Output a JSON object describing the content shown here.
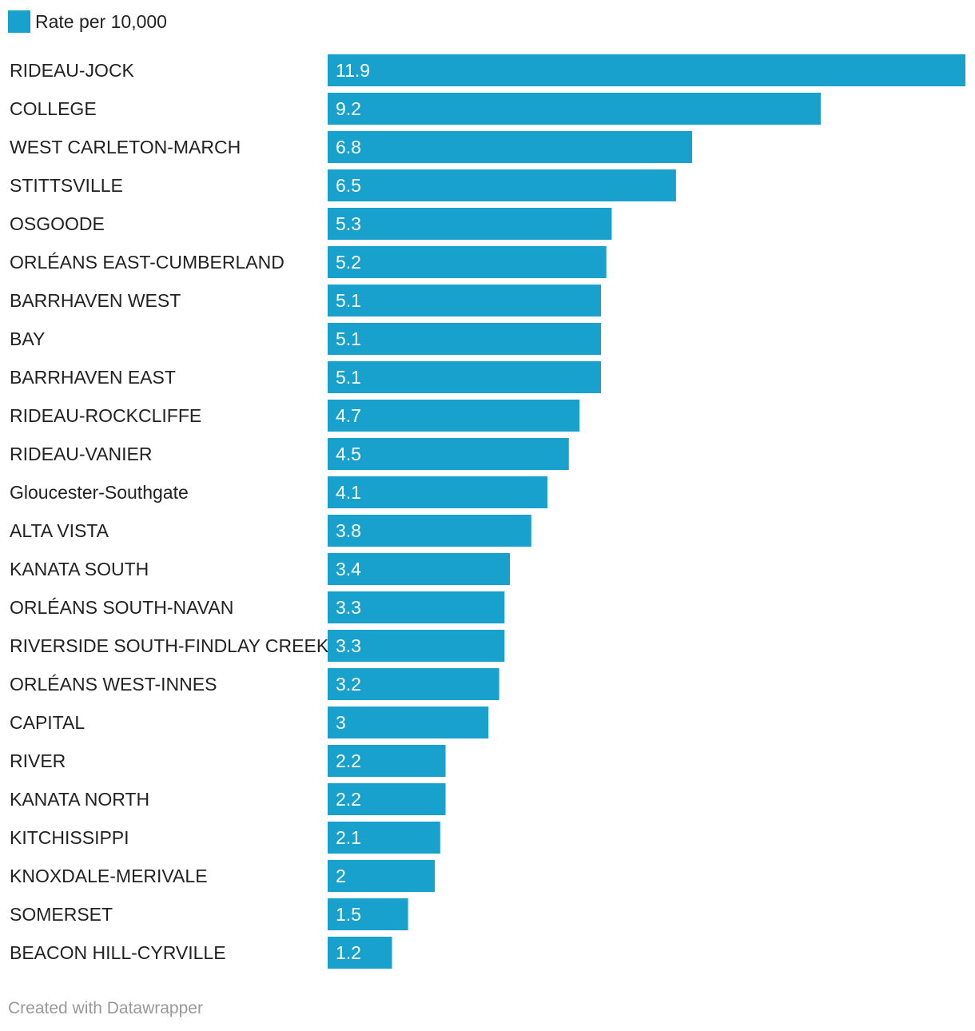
{
  "chart_data": {
    "type": "bar",
    "orientation": "horizontal",
    "legend": "top-left",
    "grid": false,
    "series": [
      {
        "name": "Rate per 10,000",
        "color": "#18a1cd"
      }
    ],
    "categories": [
      "RIDEAU-JOCK",
      "COLLEGE",
      "WEST CARLETON-MARCH",
      "STITTSVILLE",
      "OSGOODE",
      "ORLÉANS EAST-CUMBERLAND",
      "BARRHAVEN WEST",
      "BAY",
      "BARRHAVEN EAST",
      "RIDEAU-ROCKCLIFFE",
      "RIDEAU-VANIER",
      "Gloucester-Southgate",
      "ALTA VISTA",
      "KANATA SOUTH",
      "ORLÉANS SOUTH-NAVAN",
      "RIVERSIDE SOUTH-FINDLAY CREEK",
      "ORLÉANS WEST-INNES",
      "CAPITAL",
      "RIVER",
      "KANATA NORTH",
      "KITCHISSIPPI",
      "KNOXDALE-MERIVALE",
      "SOMERSET",
      "BEACON HILL-CYRVILLE"
    ],
    "values": [
      11.9,
      9.2,
      6.8,
      6.5,
      5.3,
      5.2,
      5.1,
      5.1,
      5.1,
      4.7,
      4.5,
      4.1,
      3.8,
      3.4,
      3.3,
      3.3,
      3.2,
      3,
      2.2,
      2.2,
      2.1,
      2,
      1.5,
      1.2
    ],
    "xlim": [
      0,
      11.9
    ]
  },
  "footer": {
    "credit": "Created with Datawrapper"
  }
}
